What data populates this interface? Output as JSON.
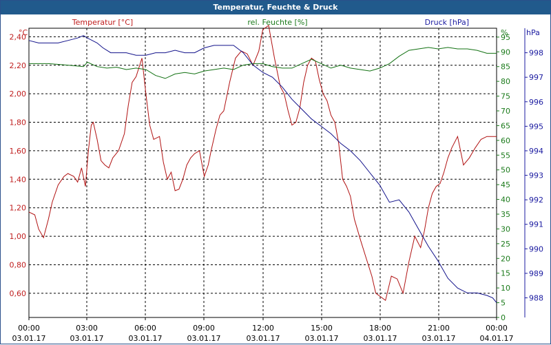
{
  "window": {
    "title": "Temperatur, Feuchte & Druck"
  },
  "chart_data": {
    "type": "line",
    "title": "Temperatur, Feuchte & Druck",
    "x_ticks": [
      {
        "time": "00:00",
        "date": "03.01.17"
      },
      {
        "time": "03:00",
        "date": "03.01.17"
      },
      {
        "time": "06:00",
        "date": "03.01.17"
      },
      {
        "time": "09:00",
        "date": "03.01.17"
      },
      {
        "time": "12:00",
        "date": "03.01.17"
      },
      {
        "time": "15:00",
        "date": "03.01.17"
      },
      {
        "time": "18:00",
        "date": "03.01.17"
      },
      {
        "time": "21:00",
        "date": "03.01.17"
      },
      {
        "time": "00:00",
        "date": "04.01.17"
      }
    ],
    "x_range_hours": [
      0,
      24
    ],
    "grid": true,
    "axes": {
      "temperature": {
        "label": "Temperatur [°C]",
        "unit": "°C",
        "side": "left",
        "range": [
          0.43,
          2.46
        ],
        "ticks": [
          "0,60",
          "0,80",
          "1,00",
          "1,20",
          "1,40",
          "1,60",
          "1,80",
          "2,00",
          "2,20",
          "2,40"
        ],
        "tick_values": [
          0.6,
          0.8,
          1.0,
          1.2,
          1.4,
          1.6,
          1.8,
          2.0,
          2.2,
          2.4
        ],
        "color": "#bf1c1c"
      },
      "humidity": {
        "label": "rel. Feuchte [%]",
        "unit": "%",
        "side": "right-inner",
        "range": [
          0,
          98
        ],
        "ticks": [
          "0",
          "5",
          "10",
          "15",
          "20",
          "25",
          "30",
          "35",
          "40",
          "45",
          "50",
          "55",
          "60",
          "65",
          "70",
          "75",
          "80",
          "85",
          "90",
          "95"
        ],
        "tick_values": [
          0,
          5,
          10,
          15,
          20,
          25,
          30,
          35,
          40,
          45,
          50,
          55,
          60,
          65,
          70,
          75,
          80,
          85,
          90,
          95
        ],
        "color": "#1a7a1a"
      },
      "pressure": {
        "label": "Druck [hPa]",
        "unit": "hPa",
        "side": "right-outer",
        "range": [
          987.2,
          999.0
        ],
        "ticks": [
          "988",
          "989",
          "990",
          "991",
          "992",
          "993",
          "994",
          "995",
          "996",
          "997",
          "998"
        ],
        "tick_values": [
          988,
          989,
          990,
          991,
          992,
          993,
          994,
          995,
          996,
          997,
          998
        ],
        "color": "#1a1aa0"
      }
    },
    "series": [
      {
        "name": "Temperatur [°C]",
        "axis": "temperature",
        "color": "#b01010",
        "x": [
          0,
          0.3,
          0.5,
          0.75,
          1.0,
          1.2,
          1.5,
          1.8,
          2.0,
          2.3,
          2.5,
          2.7,
          2.9,
          3.05,
          3.2,
          3.3,
          3.5,
          3.7,
          3.9,
          4.1,
          4.3,
          4.6,
          4.9,
          5.1,
          5.3,
          5.5,
          5.8,
          6.0,
          6.2,
          6.4,
          6.7,
          6.9,
          7.1,
          7.3,
          7.5,
          7.7,
          7.9,
          8.1,
          8.3,
          8.5,
          8.75,
          9.0,
          9.2,
          9.35,
          9.6,
          9.8,
          10.0,
          10.3,
          10.6,
          10.9,
          11.2,
          11.5,
          11.8,
          12.0,
          12.3,
          12.6,
          12.9,
          13.1,
          13.3,
          13.5,
          13.7,
          13.9,
          14.1,
          14.3,
          14.5,
          14.7,
          14.9,
          15.1,
          15.3,
          15.5,
          15.7,
          15.9,
          16.1,
          16.3,
          16.5,
          16.7,
          17.0,
          17.3,
          17.6,
          17.8,
          18.0,
          18.3,
          18.6,
          18.9,
          19.2,
          19.5,
          19.8,
          20.1,
          20.3,
          20.5,
          20.7,
          20.9,
          21.1,
          21.3,
          21.5,
          21.7,
          22.0,
          22.3,
          22.6,
          22.9,
          23.2,
          23.5,
          23.8,
          24.0
        ],
        "values": [
          1.17,
          1.15,
          1.05,
          0.99,
          1.12,
          1.24,
          1.36,
          1.42,
          1.44,
          1.42,
          1.38,
          1.48,
          1.35,
          1.6,
          1.78,
          1.8,
          1.68,
          1.53,
          1.5,
          1.48,
          1.55,
          1.6,
          1.72,
          1.92,
          2.08,
          2.12,
          2.25,
          2.0,
          1.78,
          1.68,
          1.7,
          1.52,
          1.4,
          1.45,
          1.32,
          1.33,
          1.4,
          1.5,
          1.55,
          1.58,
          1.6,
          1.42,
          1.5,
          1.6,
          1.75,
          1.85,
          1.88,
          2.08,
          2.25,
          2.3,
          2.28,
          2.2,
          2.3,
          2.45,
          2.48,
          2.25,
          2.05,
          2.0,
          1.88,
          1.78,
          1.8,
          1.9,
          2.08,
          2.2,
          2.25,
          2.23,
          2.1,
          2.0,
          1.95,
          1.85,
          1.8,
          1.65,
          1.4,
          1.35,
          1.28,
          1.12,
          0.98,
          0.85,
          0.72,
          0.6,
          0.58,
          0.55,
          0.72,
          0.7,
          0.6,
          0.82,
          1.0,
          0.92,
          1.04,
          1.2,
          1.3,
          1.35,
          1.37,
          1.45,
          1.55,
          1.62,
          1.7,
          1.5,
          1.55,
          1.62,
          1.68,
          1.7,
          1.7,
          1.7
        ],
        "note_x_unit": "hours since 00:00 03.01.17"
      },
      {
        "name": "rel. Feuchte [%]",
        "axis": "humidity",
        "color": "#107010",
        "x": [
          0,
          1,
          2,
          2.8,
          3.0,
          3.5,
          4.0,
          4.5,
          5.0,
          5.5,
          6.0,
          6.5,
          7.0,
          7.5,
          8.0,
          8.5,
          9.0,
          9.5,
          10.0,
          10.5,
          11.0,
          11.5,
          12.0,
          12.5,
          13.0,
          13.5,
          14.0,
          14.5,
          15.0,
          15.5,
          16.0,
          16.5,
          17.0,
          17.5,
          18.0,
          18.5,
          19.0,
          19.5,
          20.0,
          20.5,
          21.0,
          21.5,
          22.0,
          22.5,
          23.0,
          23.5,
          24.0
        ],
        "values": [
          86,
          86,
          85.5,
          85,
          86.5,
          85,
          84.5,
          84.8,
          84,
          84.5,
          84,
          82,
          81,
          82.5,
          83,
          82.5,
          83.5,
          84,
          84.5,
          84,
          85.5,
          86,
          86,
          85,
          84.5,
          84.5,
          86,
          87.5,
          86,
          84.5,
          85.5,
          84.5,
          84,
          83.5,
          84.5,
          86,
          88.5,
          90.5,
          91,
          91.5,
          91,
          91.5,
          91,
          91,
          90.5,
          89.5,
          89.5
        ]
      },
      {
        "name": "Druck [hPa]",
        "axis": "pressure",
        "color": "#10108a",
        "x": [
          0,
          0.5,
          1,
          1.5,
          2,
          2.5,
          2.8,
          3.0,
          3.5,
          3.8,
          4.2,
          4.6,
          5.0,
          5.5,
          6.0,
          6.5,
          7.0,
          7.5,
          8.0,
          8.5,
          9.0,
          9.5,
          10.0,
          10.5,
          11.0,
          11.5,
          12.0,
          12.5,
          13.0,
          13.5,
          14.0,
          14.5,
          15.0,
          15.5,
          16.0,
          16.5,
          17.0,
          17.5,
          18.0,
          18.5,
          19.0,
          19.5,
          20.0,
          20.5,
          21.0,
          21.5,
          22.0,
          22.5,
          23.0,
          23.5,
          23.8,
          24.0
        ],
        "values": [
          998.5,
          998.4,
          998.4,
          998.4,
          998.5,
          998.6,
          998.7,
          998.6,
          998.4,
          998.2,
          998.0,
          998.0,
          998.0,
          997.9,
          997.9,
          998.0,
          998.0,
          998.1,
          998.0,
          998.0,
          998.2,
          998.3,
          998.3,
          998.3,
          998.0,
          997.5,
          997.2,
          997.0,
          996.6,
          996.1,
          995.7,
          995.3,
          995.0,
          994.7,
          994.3,
          994.0,
          993.6,
          993.1,
          992.6,
          991.9,
          992.0,
          991.5,
          990.8,
          990.1,
          989.5,
          988.8,
          988.4,
          988.2,
          988.2,
          988.1,
          988.0,
          987.8
        ]
      }
    ]
  }
}
